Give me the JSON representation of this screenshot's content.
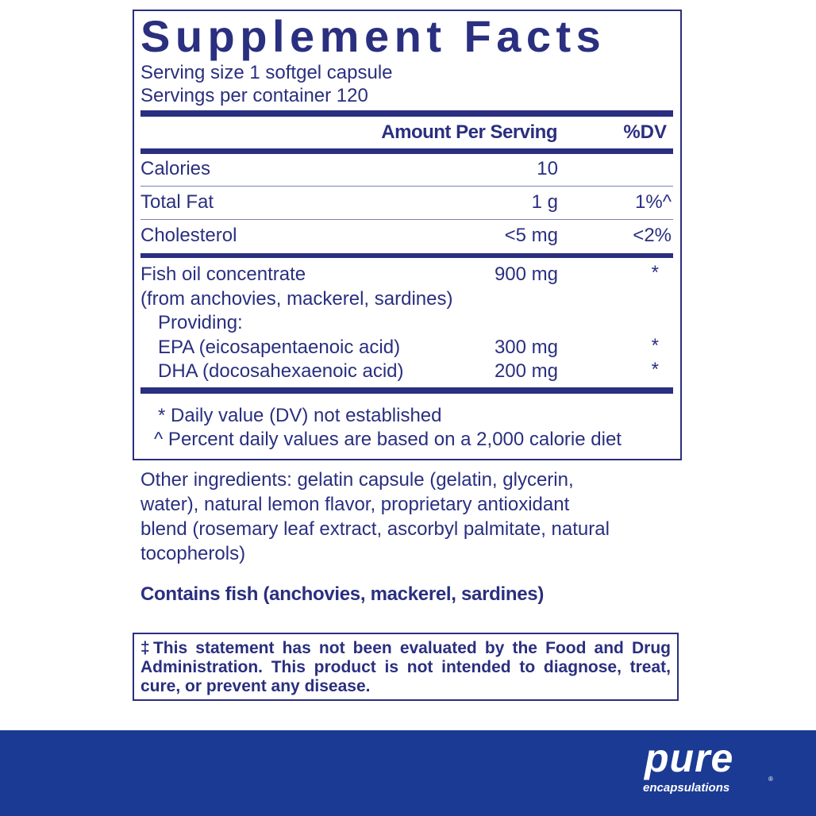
{
  "title": "Supplement Facts",
  "serving_size": "Serving size  1 softgel capsule",
  "servings_per_container": "Servings per container  120",
  "header": {
    "amount": "Amount Per Serving",
    "dv": "%DV"
  },
  "rows": [
    {
      "name": "Calories",
      "amount": "10",
      "dv": ""
    },
    {
      "name": "Total Fat",
      "amount": "1 g",
      "dv": "1%^"
    },
    {
      "name": "Cholesterol",
      "amount": "<5 mg",
      "dv": "<2%"
    }
  ],
  "ingredients": {
    "main": {
      "name": "Fish oil concentrate",
      "amount": "900 mg",
      "dv": "*"
    },
    "source": "(from anchovies, mackerel, sardines)",
    "providing": "Providing:",
    "sub": [
      {
        "name": "EPA (eicosapentaenoic acid)",
        "amount": "300 mg",
        "dv": "*"
      },
      {
        "name": "DHA (docosahexaenoic acid)",
        "amount": "200 mg",
        "dv": "*"
      }
    ]
  },
  "footnotes": [
    "* Daily value (DV) not established",
    "^ Percent daily values are based on a 2,000 calorie diet"
  ],
  "other_ingredients": [
    "Other ingredients: gelatin capsule (gelatin, glycerin,",
    "water), natural lemon flavor, proprietary antioxidant",
    "blend (rosemary leaf extract, ascorbyl palmitate, natural",
    "tocopherols)"
  ],
  "allergen": "Contains fish (anchovies, mackerel, sardines)",
  "disclaimer": "‡This statement has not been evaluated by the Food and Drug Administration. This product is not intended to diagnose, treat, cure, or prevent any disease.",
  "brand": {
    "line1": "pure",
    "line2": "encapsulations",
    "reg": "®"
  },
  "colors": {
    "text": "#2a2f7f",
    "banner": "#1b3a94"
  }
}
